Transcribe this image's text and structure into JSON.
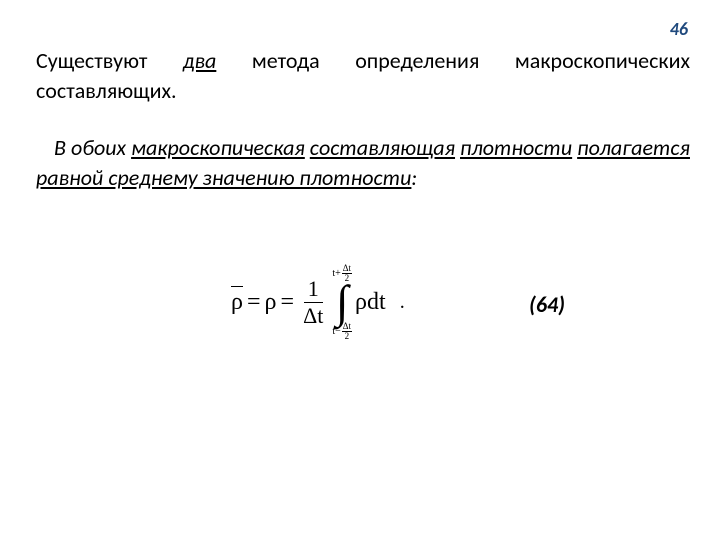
{
  "page_number_color": "#1f497d",
  "page_number": "46",
  "p1": {
    "t1": "Существуют ",
    "two": "два",
    "t2": " метода определения макроскопических составляющих."
  },
  "p2": {
    "lead_indent": " ",
    "t1": "В обоих ",
    "u1": "макроскопическая",
    "sp1": " ",
    "u2": "составляющая",
    "sp2": " ",
    "u3": "плотности",
    "sp3": " ",
    "u4": "полагается равной среднему значению плотности",
    "colon": ":"
  },
  "formula": {
    "rho": "ρ",
    "eq": "=",
    "one": "1",
    "Delta_t": "Δt",
    "upper_prefix": "t+",
    "lower_prefix": "t−",
    "mini_num": "Δt",
    "mini_den": "2",
    "integral": "∫",
    "integrand_rho": "ρ",
    "dt": "dt",
    "dot": "."
  },
  "eq_label": "(64)"
}
